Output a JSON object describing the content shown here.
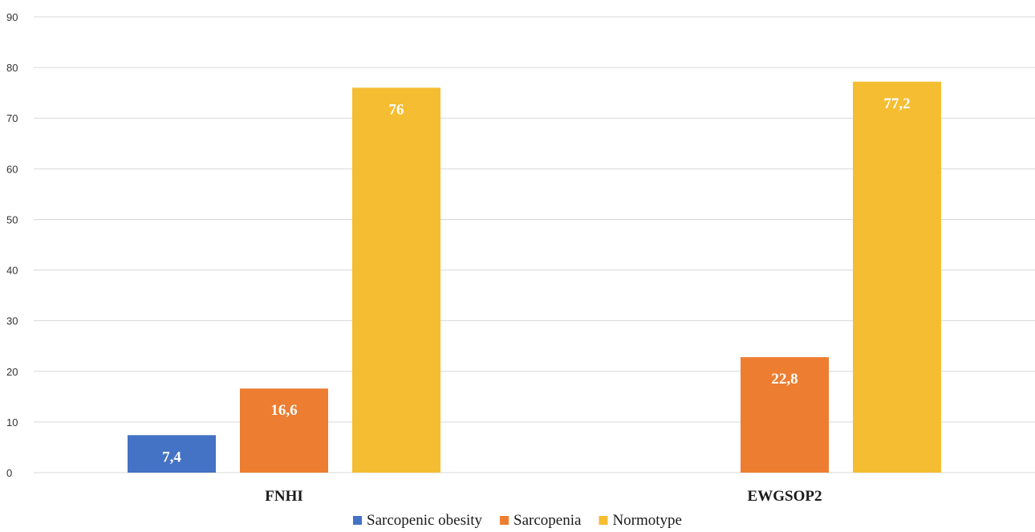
{
  "chart_data": {
    "type": "bar",
    "title": "",
    "xlabel": "",
    "ylabel": "",
    "categories": [
      "FNHI",
      "EWGSOP2"
    ],
    "ylim": [
      0,
      90
    ],
    "yticks": [
      0,
      10,
      20,
      30,
      40,
      50,
      60,
      70,
      80,
      90
    ],
    "grid": true,
    "legend_position": "bottom",
    "series": [
      {
        "name": "Sarcopenic obesity",
        "color": "#4472c4",
        "values": [
          7.4,
          null
        ],
        "labels": [
          "7,4",
          ""
        ]
      },
      {
        "name": "Sarcopenia",
        "color": "#ed7d31",
        "values": [
          16.6,
          22.8
        ],
        "labels": [
          "16,6",
          "22,8"
        ]
      },
      {
        "name": "Normotype",
        "color": "#f5bd31",
        "values": [
          76,
          77.2
        ],
        "labels": [
          "76",
          "77,2"
        ]
      }
    ]
  }
}
